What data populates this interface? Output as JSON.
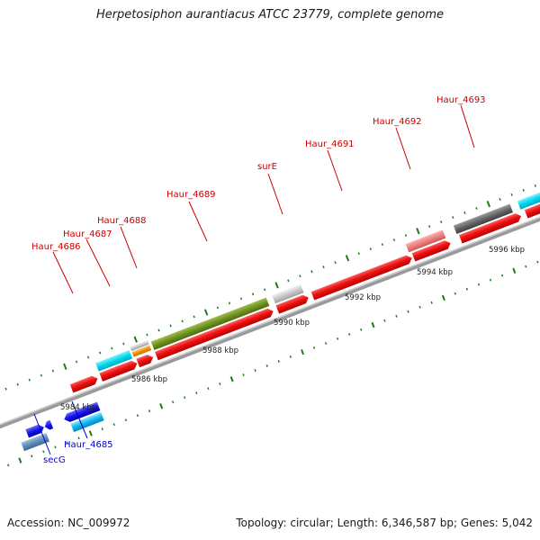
{
  "title": "Herpetosiphon aurantiacus ATCC 23779, complete genome",
  "footer": {
    "accession": "Accession: NC_009972",
    "topology": "Topology: circular; Length: 6,346,587 bp; Genes: 5,042"
  },
  "colors": {
    "gene_red": "#ee1111",
    "label_red": "#cc0000",
    "label_blue": "#0000cc",
    "tick_green": "#1d7a1d",
    "backbone": "#8a8a8a"
  },
  "scale_labels": [
    "5984 kbp",
    "5986 kbp",
    "5988 kbp",
    "5990 kbp",
    "5992 kbp",
    "5994 kbp",
    "5996 kbp"
  ],
  "gene_labels": {
    "forward": [
      "Haur_4686",
      "Haur_4687",
      "Haur_4688",
      "Haur_4689",
      "surE",
      "Haur_4691",
      "Haur_4692",
      "Haur_4693"
    ],
    "reverse": [
      "secG",
      "Haur_4685"
    ]
  }
}
